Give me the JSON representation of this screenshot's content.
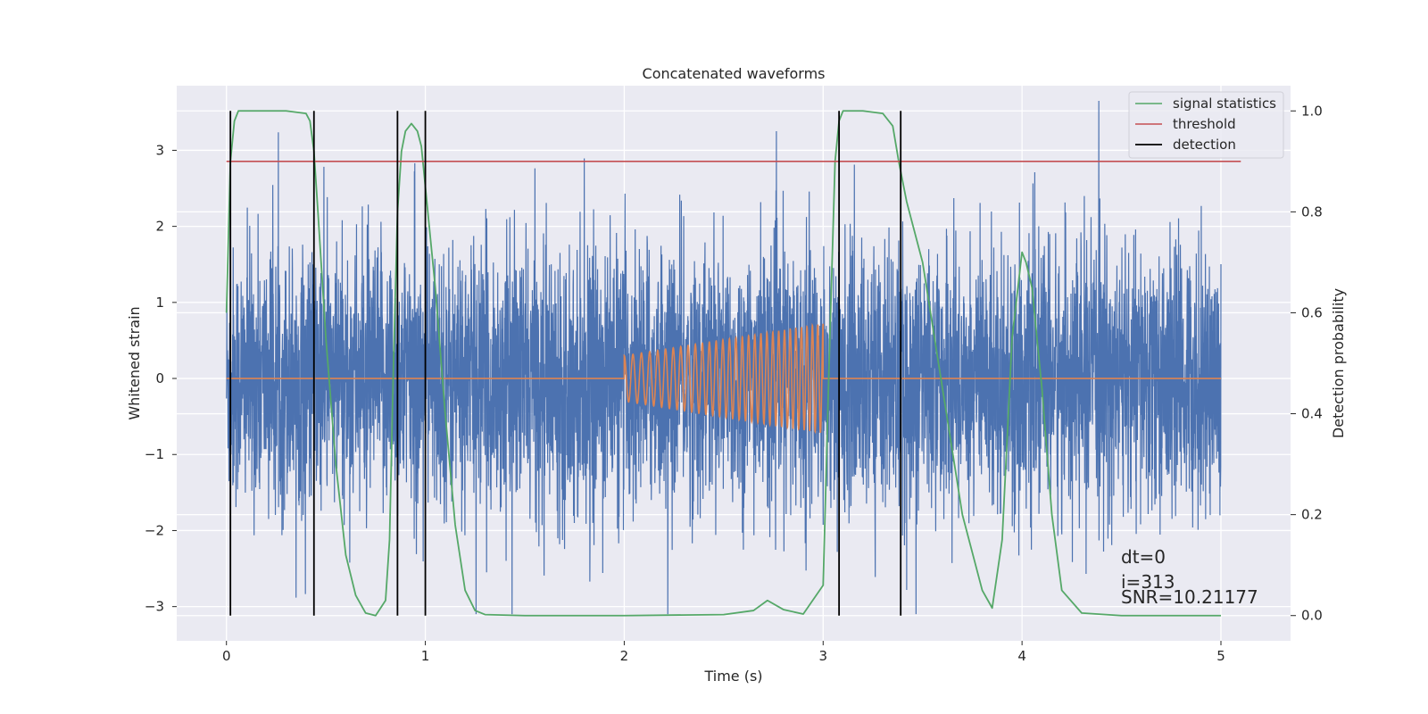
{
  "chart_data": {
    "type": "line",
    "title": "Concatenated waveforms",
    "xlabel": "Time (s)",
    "ylabel": "Whitened strain",
    "ylabel_right": "Detection probability",
    "xlim": [
      -0.25,
      5.35
    ],
    "ylim": [
      -3.45,
      3.85
    ],
    "ylim_right": [
      -0.05,
      1.05
    ],
    "x_ticks": [
      0,
      1,
      2,
      3,
      4,
      5
    ],
    "y_ticks": [
      -3,
      -2,
      -1,
      0,
      1,
      2,
      3
    ],
    "y_ticks_right": [
      0.0,
      0.2,
      0.4,
      0.6,
      0.8,
      1.0
    ],
    "x_tick_labels": [
      "0",
      "1",
      "2",
      "3",
      "4",
      "5"
    ],
    "y_tick_labels": [
      "−3",
      "−2",
      "−1",
      "0",
      "1",
      "2",
      "3"
    ],
    "y_tick_labels_right": [
      "0.0",
      "0.2",
      "0.4",
      "0.6",
      "0.8",
      "1.0"
    ],
    "grid": true,
    "legend_position": "top-right",
    "legend": [
      "signal statistics",
      "threshold",
      "detection"
    ],
    "colors": {
      "strain": "#4c72b0",
      "template": "#dd8452",
      "signal_statistics": "#55a868",
      "threshold": "#c44e52",
      "detection": "#000000",
      "plot_background": "#eaeaf2",
      "grid": "#ffffff"
    },
    "series": [
      {
        "name": "signal statistics",
        "axis": "right",
        "x": [
          0,
          0.02,
          0.04,
          0.06,
          0.1,
          0.2,
          0.3,
          0.4,
          0.42,
          0.44,
          0.46,
          0.5,
          0.55,
          0.6,
          0.65,
          0.7,
          0.75,
          0.8,
          0.82,
          0.84,
          0.86,
          0.88,
          0.9,
          0.93,
          0.96,
          0.98,
          1.0,
          1.05,
          1.1,
          1.15,
          1.2,
          1.25,
          1.3,
          1.5,
          2.0,
          2.5,
          2.65,
          2.72,
          2.8,
          2.9,
          3.0,
          3.03,
          3.06,
          3.08,
          3.1,
          3.2,
          3.3,
          3.35,
          3.38,
          3.42,
          3.5,
          3.6,
          3.7,
          3.8,
          3.85,
          3.9,
          3.95,
          4.0,
          4.02,
          4.05,
          4.1,
          4.15,
          4.2,
          4.3,
          4.5,
          5.0
        ],
        "y": [
          0.6,
          0.9,
          0.98,
          1.0,
          1.0,
          1.0,
          1.0,
          0.995,
          0.98,
          0.92,
          0.8,
          0.55,
          0.3,
          0.12,
          0.04,
          0.005,
          0.0,
          0.03,
          0.15,
          0.5,
          0.8,
          0.92,
          0.96,
          0.975,
          0.96,
          0.93,
          0.85,
          0.65,
          0.4,
          0.18,
          0.05,
          0.01,
          0.002,
          0.0,
          0.0,
          0.002,
          0.01,
          0.03,
          0.012,
          0.003,
          0.06,
          0.5,
          0.9,
          0.98,
          1.0,
          1.0,
          0.995,
          0.97,
          0.9,
          0.82,
          0.7,
          0.45,
          0.2,
          0.05,
          0.015,
          0.15,
          0.55,
          0.72,
          0.7,
          0.65,
          0.45,
          0.2,
          0.05,
          0.005,
          0.0,
          0.0
        ]
      },
      {
        "name": "threshold",
        "axis": "right",
        "x": [
          0,
          5.1
        ],
        "y": [
          0.9,
          0.9
        ]
      }
    ],
    "detections_x": [
      0.02,
      0.44,
      0.86,
      1.0,
      3.08,
      3.39
    ],
    "strain": {
      "axis": "left",
      "x_range": [
        0,
        5
      ],
      "typical_range": [
        -1.5,
        1.5
      ],
      "max": 3.65,
      "min": -3.1
    },
    "template": {
      "axis": "left",
      "x_range": [
        2,
        3
      ],
      "y_start": 0.3,
      "amplitude_end": 0.72,
      "cycles": 30
    },
    "annotation_lines": [
      "dt=0",
      "i=313",
      "SNR=10.21177"
    ]
  }
}
